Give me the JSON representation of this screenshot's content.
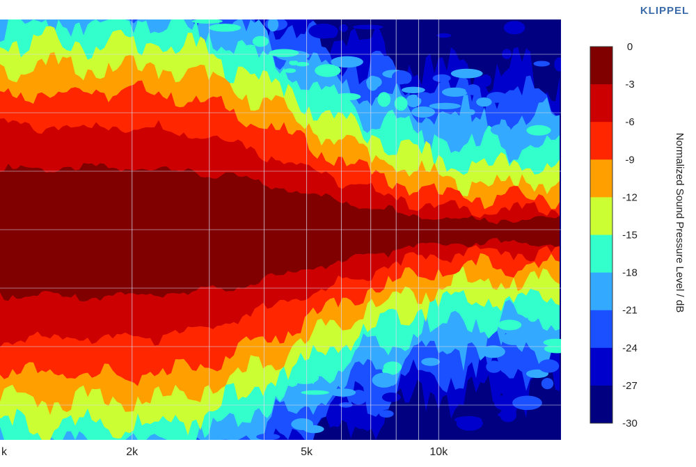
{
  "brand": "KLIPPEL",
  "chart_data": {
    "type": "heatmap",
    "title": "",
    "xlabel": "",
    "x_scale": "log",
    "x_ticks": [
      {
        "value": 1000,
        "label": "k"
      },
      {
        "value": 2000,
        "label": "2k"
      },
      {
        "value": 5000,
        "label": "5k"
      },
      {
        "value": 10000,
        "label": "10k"
      }
    ],
    "x_gridlines": [
      2000,
      3000,
      4000,
      5000,
      6000,
      7000,
      8000,
      9000,
      10000
    ],
    "colorbar": {
      "label": "Normalized Sound Pressure Level / dB",
      "range": [
        -30,
        0
      ],
      "ticks": [
        "0",
        "-3",
        "-6",
        "-9",
        "-12",
        "-15",
        "-18",
        "-21",
        "-24",
        "-27",
        "-30"
      ],
      "colors": [
        "#800000",
        "#cc0000",
        "#ff2600",
        "#ffa000",
        "#ccff33",
        "#33ffcc",
        "#33aaff",
        "#1a50ff",
        "#0000cc",
        "#000080"
      ]
    },
    "grid": true
  }
}
